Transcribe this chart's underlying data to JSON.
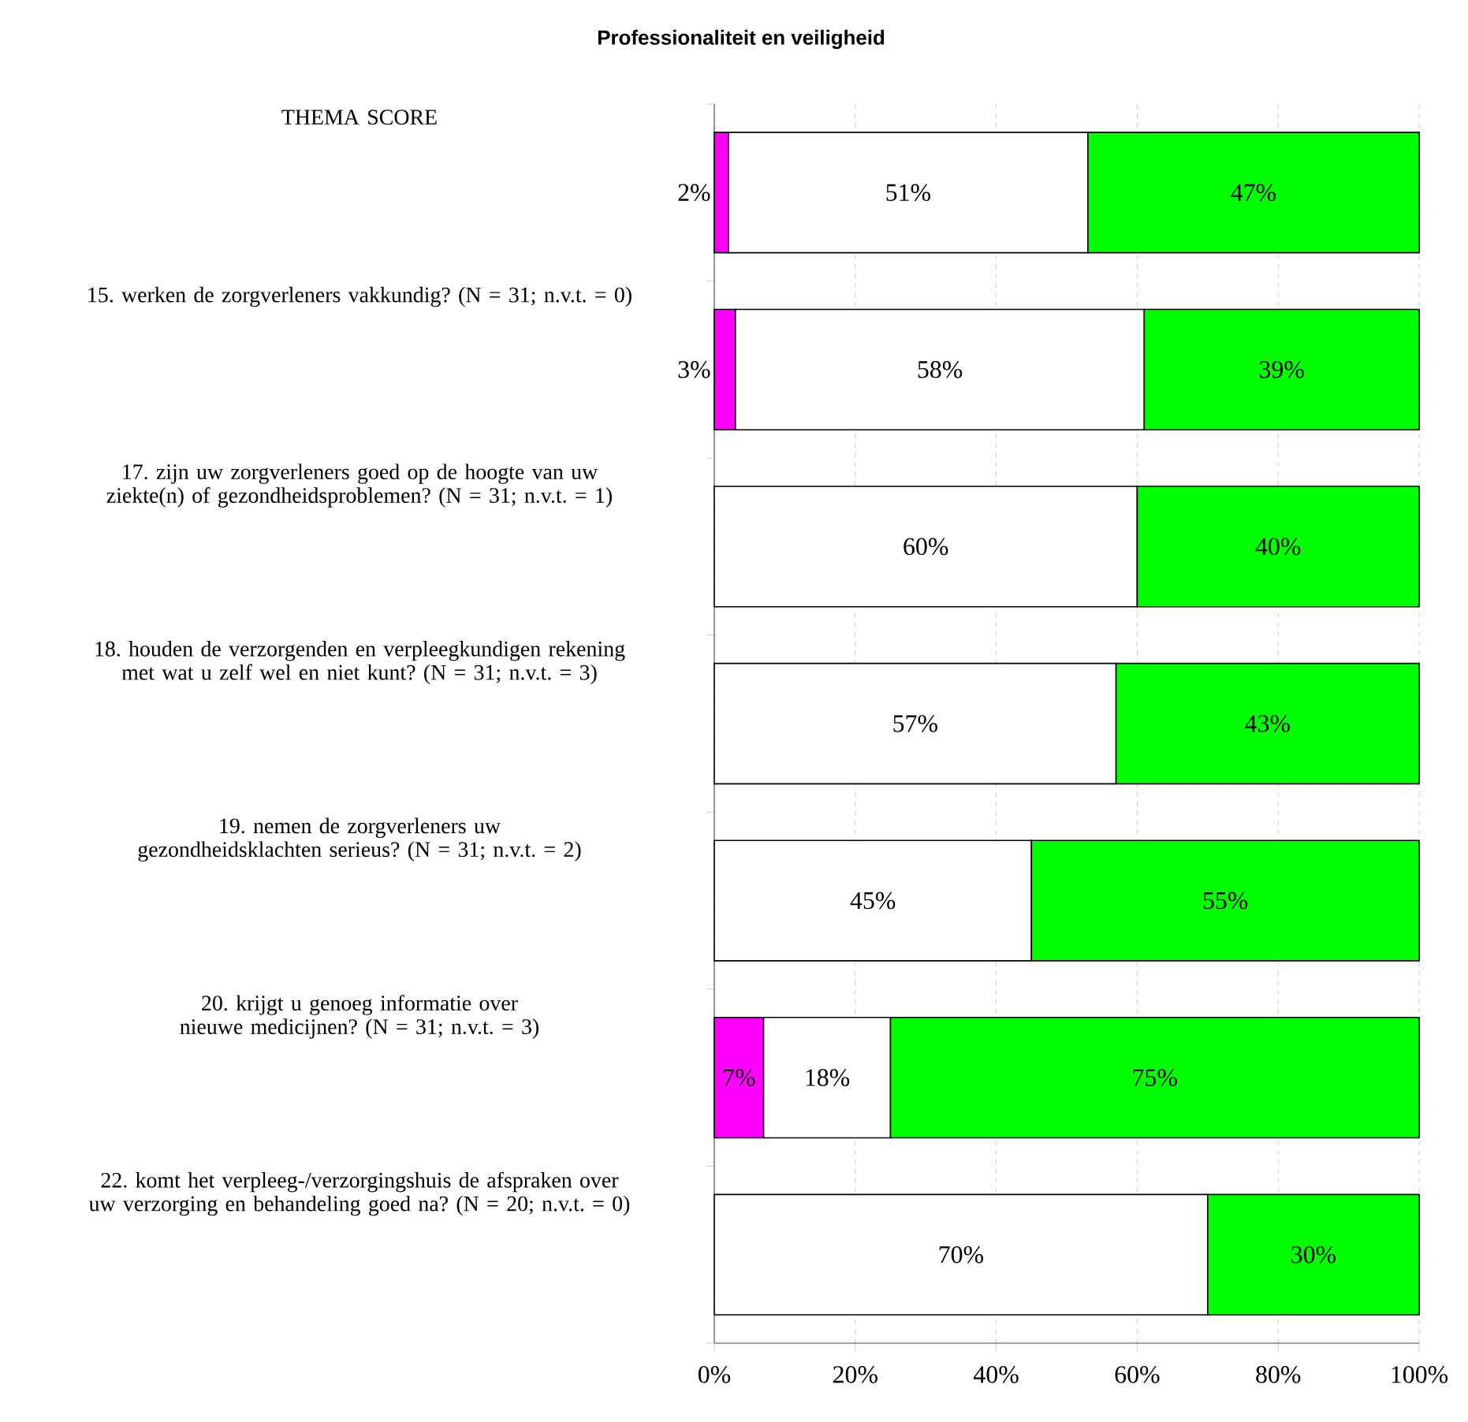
{
  "chart_data": {
    "type": "bar",
    "orientation": "horizontal",
    "stacked": true,
    "title": "Professionaliteit en veiligheid",
    "categories": [
      "THEMA SCORE",
      "15. werken de zorgverleners vakkundig? (N = 31; n.v.t. = 0)",
      "17. zijn uw zorgverleners goed op de hoogte van uw ziekte(n) of gezondheidsproblemen? (N = 31; n.v.t. = 1)",
      "18. houden de verzorgenden en verpleegkundigen rekening met wat u zelf wel en niet kunt? (N = 31; n.v.t. = 3)",
      "19. nemen de zorgverleners uw gezondheidsklachten serieus? (N = 31; n.v.t. = 2)",
      "20. krijgt u genoeg informatie over nieuwe medicijnen? (N = 31; n.v.t. = 3)",
      "22. komt het verpleeg-/verzorgingshuis de afspraken over uw verzorging en behandeling goed na? (N = 20; n.v.t. = 0)"
    ],
    "series": [
      {
        "color": "#ff00ff",
        "values": [
          2,
          3,
          null,
          null,
          null,
          7,
          null
        ],
        "value_labels": [
          "2%",
          "3%",
          null,
          null,
          null,
          "7%",
          null
        ]
      },
      {
        "color": "#ffffff",
        "values": [
          51,
          58,
          60,
          57,
          45,
          18,
          70
        ],
        "value_labels": [
          "51%",
          "58%",
          "60%",
          "57%",
          "45%",
          "18%",
          "70%"
        ]
      },
      {
        "color": "#00ff00",
        "values": [
          47,
          39,
          40,
          43,
          55,
          75,
          30
        ],
        "value_labels": [
          "47%",
          "39%",
          "40%",
          "43%",
          "55%",
          "75%",
          "30%"
        ]
      }
    ],
    "xlim": [
      0,
      100
    ],
    "xticks": [
      {
        "value": 0,
        "label": "0%"
      },
      {
        "value": 20,
        "label": "20%"
      },
      {
        "value": 40,
        "label": "40%"
      },
      {
        "value": 60,
        "label": "60%"
      },
      {
        "value": 80,
        "label": "80%"
      },
      {
        "value": 100,
        "label": "100%"
      }
    ],
    "grid": "x"
  }
}
